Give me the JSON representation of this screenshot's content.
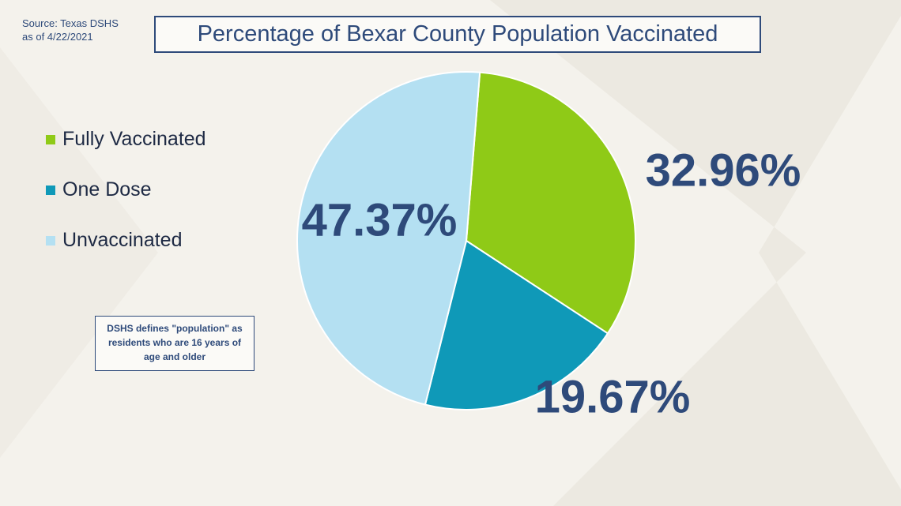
{
  "chart_data": {
    "type": "pie",
    "title": "Percentage of Bexar County Population Vaccinated",
    "source": "Source: Texas DSHS",
    "date": "as of 4/22/2021",
    "note": "DSHS defines \"population\" as residents who are 16 years of age and older",
    "categories": [
      "Fully Vaccinated",
      "One Dose",
      "Unvaccinated"
    ],
    "values": [
      32.96,
      19.67,
      47.37
    ],
    "value_labels": [
      "32.96%",
      "19.67%",
      "47.37%"
    ],
    "colors": [
      "#8fca17",
      "#0f99b8",
      "#b4e0f2"
    ]
  }
}
